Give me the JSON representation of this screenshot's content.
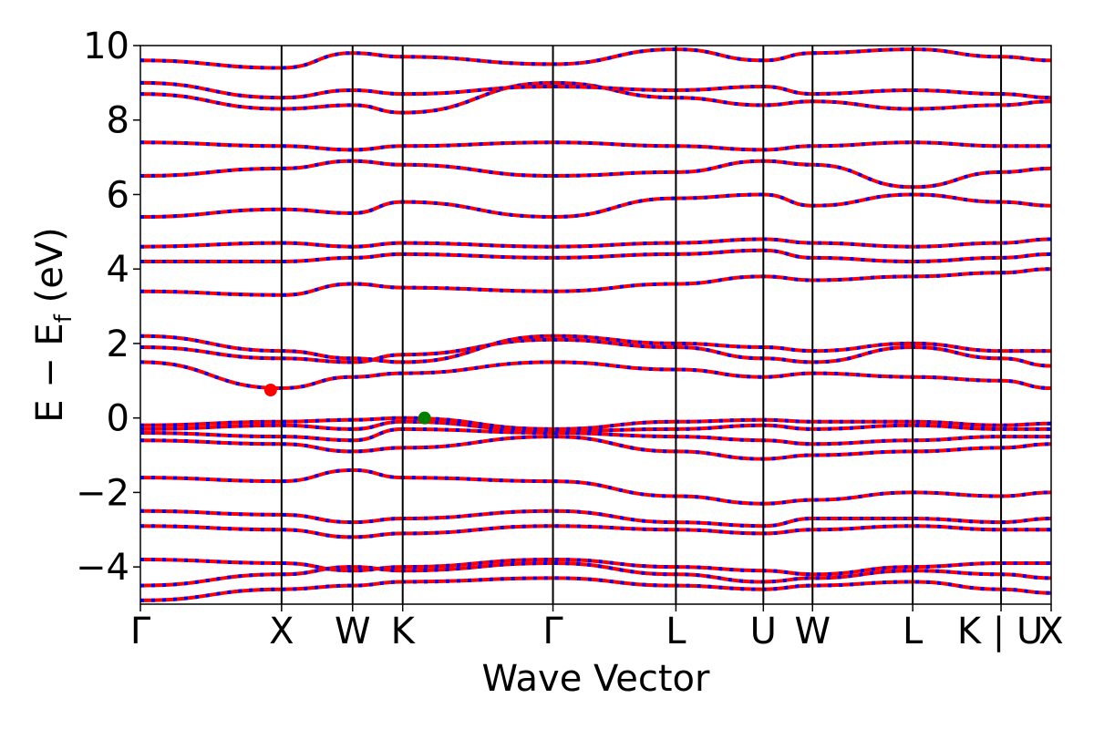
{
  "chart_data": {
    "type": "line",
    "title": "",
    "xlabel": "Wave Vector",
    "ylabel_main": "E − E",
    "ylabel_sub": "f",
    "ylabel_unit": " (eV)",
    "ylim": [
      -5,
      10
    ],
    "yticks": [
      -4,
      -2,
      0,
      2,
      4,
      6,
      8,
      10
    ],
    "ytick_labels": [
      "−4",
      "−2",
      "0",
      "2",
      "4",
      "6",
      "8",
      "10"
    ],
    "xlim": [
      0,
      1
    ],
    "high_symmetry_points": [
      {
        "label": "Γ",
        "x": 0.0
      },
      {
        "label": "X",
        "x": 0.155
      },
      {
        "label": "W",
        "x": 0.233
      },
      {
        "label": "K",
        "x": 0.288
      },
      {
        "label": "Γ",
        "x": 0.453
      },
      {
        "label": "L",
        "x": 0.588
      },
      {
        "label": "U",
        "x": 0.684
      },
      {
        "label": "W",
        "x": 0.738
      },
      {
        "label": "L",
        "x": 0.848
      },
      {
        "label": "K | U",
        "x": 0.945
      },
      {
        "label": "X",
        "x": 1.0
      }
    ],
    "band_energies": [
      {
        "series": "valence",
        "values": [
          -4.9,
          -4.6,
          -4.5,
          -4.4,
          -4.3,
          -4.5,
          -4.6,
          -4.5,
          -4.4,
          -4.6,
          -4.7
        ]
      },
      {
        "series": "valence",
        "values": [
          -4.5,
          -4.2,
          -4.0,
          -4.1,
          -3.9,
          -4.2,
          -4.4,
          -4.3,
          -4.1,
          -4.2,
          -4.3
        ]
      },
      {
        "series": "valence",
        "values": [
          -3.8,
          -3.9,
          -4.1,
          -4.0,
          -3.8,
          -4.0,
          -4.1,
          -4.2,
          -4.0,
          -3.9,
          -3.9
        ]
      },
      {
        "series": "valence",
        "values": [
          -2.9,
          -3.0,
          -3.2,
          -3.1,
          -2.9,
          -3.0,
          -3.1,
          -3.0,
          -2.9,
          -3.0,
          -3.0
        ]
      },
      {
        "series": "valence",
        "values": [
          -2.5,
          -2.6,
          -2.8,
          -2.7,
          -2.5,
          -2.8,
          -2.9,
          -2.7,
          -2.7,
          -2.8,
          -2.7
        ]
      },
      {
        "series": "valence",
        "values": [
          -1.6,
          -1.7,
          -1.4,
          -1.6,
          -1.7,
          -2.1,
          -2.3,
          -2.2,
          -2.0,
          -2.1,
          -2.0
        ]
      },
      {
        "series": "valence",
        "values": [
          -0.6,
          -0.7,
          -0.9,
          -0.8,
          -0.5,
          -0.9,
          -1.1,
          -1.0,
          -0.9,
          -0.8,
          -0.7
        ]
      },
      {
        "series": "valence",
        "values": [
          -0.4,
          -0.5,
          -0.6,
          -0.3,
          -0.4,
          -0.5,
          -0.6,
          -0.7,
          -0.6,
          -0.5,
          -0.5
        ]
      },
      {
        "series": "valence",
        "values": [
          -0.3,
          -0.2,
          -0.3,
          -0.1,
          -0.35,
          -0.3,
          -0.2,
          -0.3,
          -0.2,
          -0.3,
          -0.3
        ]
      },
      {
        "series": "valence",
        "values": [
          -0.2,
          -0.1,
          -0.05,
          0.0,
          -0.3,
          -0.1,
          -0.05,
          -0.1,
          -0.1,
          -0.2,
          -0.15
        ]
      },
      {
        "series": "conduction",
        "values": [
          1.5,
          0.8,
          1.1,
          1.2,
          1.5,
          1.3,
          1.1,
          1.2,
          1.1,
          1.0,
          0.8
        ]
      },
      {
        "series": "conduction",
        "values": [
          1.9,
          1.6,
          1.5,
          1.7,
          2.1,
          1.9,
          1.6,
          1.5,
          1.9,
          1.6,
          1.4
        ]
      },
      {
        "series": "conduction",
        "values": [
          2.2,
          1.8,
          1.6,
          1.5,
          2.2,
          2.0,
          1.9,
          1.8,
          2.0,
          1.8,
          1.8
        ]
      },
      {
        "series": "conduction",
        "values": [
          3.4,
          3.3,
          3.6,
          3.5,
          3.4,
          3.6,
          3.8,
          3.7,
          3.8,
          3.9,
          4.0
        ]
      },
      {
        "series": "conduction",
        "values": [
          4.2,
          4.2,
          4.3,
          4.4,
          4.3,
          4.4,
          4.5,
          4.3,
          4.2,
          4.3,
          4.4
        ]
      },
      {
        "series": "conduction",
        "values": [
          4.6,
          4.7,
          4.6,
          4.7,
          4.6,
          4.7,
          4.8,
          4.7,
          4.6,
          4.7,
          4.8
        ]
      },
      {
        "series": "conduction",
        "values": [
          5.4,
          5.6,
          5.5,
          5.8,
          5.4,
          5.9,
          6.0,
          5.7,
          6.0,
          5.8,
          5.7
        ]
      },
      {
        "series": "conduction",
        "values": [
          6.5,
          6.7,
          6.9,
          6.8,
          6.5,
          6.6,
          6.9,
          6.8,
          6.2,
          6.6,
          6.7
        ]
      },
      {
        "series": "conduction",
        "values": [
          7.4,
          7.3,
          7.2,
          7.3,
          7.4,
          7.3,
          7.2,
          7.3,
          7.4,
          7.3,
          7.3
        ]
      },
      {
        "series": "conduction",
        "values": [
          8.7,
          8.3,
          8.4,
          8.2,
          9.0,
          8.6,
          8.4,
          8.5,
          8.3,
          8.4,
          8.5
        ]
      },
      {
        "series": "conduction",
        "values": [
          9.0,
          8.6,
          8.8,
          8.7,
          8.9,
          8.8,
          8.9,
          8.7,
          8.8,
          8.7,
          8.6
        ]
      },
      {
        "series": "conduction",
        "values": [
          9.6,
          9.4,
          9.8,
          9.7,
          9.5,
          9.9,
          9.6,
          9.8,
          9.9,
          9.7,
          9.6
        ]
      }
    ],
    "vbm_marker": {
      "x": 0.312,
      "y": 0.0,
      "color": "#008000"
    },
    "cbm_marker": {
      "x": 0.143,
      "y": 0.75,
      "color": "#ff0000"
    },
    "band_colors": {
      "spin_up": "#ff0000",
      "spin_down": "#0000ff"
    },
    "grid": false
  }
}
